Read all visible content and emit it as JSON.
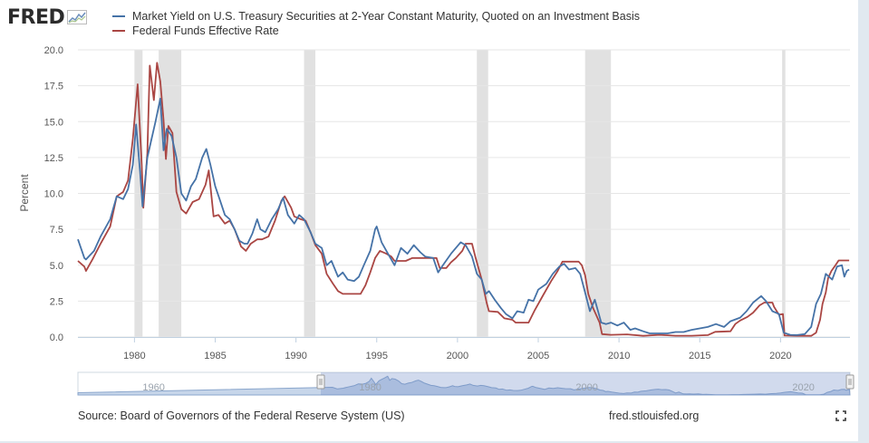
{
  "header": {
    "logo_text": "FRED",
    "legend": [
      {
        "label": "Market Yield on U.S. Treasury Securities at 2-Year Constant Maturity, Quoted on an Investment Basis",
        "color": "#4572a7"
      },
      {
        "label": "Federal Funds Effective Rate",
        "color": "#aa4643"
      }
    ]
  },
  "footer": {
    "source": "Source: Board of Governors of the Federal Reserve System (US)",
    "link": "fred.stlouisfed.org"
  },
  "chart_data": {
    "type": "line",
    "title": "",
    "xlabel": "",
    "ylabel": "Percent",
    "xlim": [
      1976.5,
      2024.3
    ],
    "ylim": [
      0,
      20
    ],
    "yticks": [
      "0.0",
      "2.5",
      "5.0",
      "7.5",
      "10.0",
      "12.5",
      "15.0",
      "17.5",
      "20.0"
    ],
    "xticks": [
      "1980",
      "1985",
      "1990",
      "1995",
      "2000",
      "2005",
      "2010",
      "2015",
      "2020"
    ],
    "grid": "horizontal",
    "legend_position": "top",
    "recessions": [
      [
        1980.0,
        1980.5
      ],
      [
        1981.5,
        1982.9
      ],
      [
        1990.5,
        1991.2
      ],
      [
        2001.2,
        2001.9
      ],
      [
        2007.9,
        2009.5
      ],
      [
        2020.1,
        2020.3
      ]
    ],
    "series": [
      {
        "name": "Market Yield on U.S. Treasury Securities at 2-Year Constant Maturity, Quoted on an Investment Basis",
        "color": "#4572a7",
        "points": [
          [
            1976.5,
            6.8
          ],
          [
            1976.9,
            5.5
          ],
          [
            1977.0,
            5.4
          ],
          [
            1977.5,
            6.0
          ],
          [
            1977.9,
            7.0
          ],
          [
            1978.5,
            8.2
          ],
          [
            1978.9,
            9.8
          ],
          [
            1979.3,
            9.6
          ],
          [
            1979.6,
            10.3
          ],
          [
            1979.9,
            12.0
          ],
          [
            1980.1,
            14.8
          ],
          [
            1980.35,
            11.5
          ],
          [
            1980.5,
            9.1
          ],
          [
            1980.8,
            12.5
          ],
          [
            1981.0,
            13.5
          ],
          [
            1981.3,
            15.0
          ],
          [
            1981.6,
            16.6
          ],
          [
            1981.8,
            13.0
          ],
          [
            1982.0,
            14.5
          ],
          [
            1982.3,
            14.0
          ],
          [
            1982.6,
            12.5
          ],
          [
            1982.9,
            10.0
          ],
          [
            1983.2,
            9.5
          ],
          [
            1983.5,
            10.5
          ],
          [
            1983.8,
            11.0
          ],
          [
            1984.2,
            12.5
          ],
          [
            1984.45,
            13.1
          ],
          [
            1984.7,
            12.0
          ],
          [
            1985.0,
            10.5
          ],
          [
            1985.3,
            9.5
          ],
          [
            1985.6,
            8.5
          ],
          [
            1985.9,
            8.2
          ],
          [
            1986.2,
            7.5
          ],
          [
            1986.5,
            6.7
          ],
          [
            1986.8,
            6.5
          ],
          [
            1987.0,
            6.5
          ],
          [
            1987.3,
            7.2
          ],
          [
            1987.6,
            8.2
          ],
          [
            1987.8,
            7.5
          ],
          [
            1988.1,
            7.3
          ],
          [
            1988.5,
            8.2
          ],
          [
            1988.9,
            8.9
          ],
          [
            1989.2,
            9.7
          ],
          [
            1989.5,
            8.5
          ],
          [
            1989.9,
            7.9
          ],
          [
            1990.2,
            8.5
          ],
          [
            1990.5,
            8.2
          ],
          [
            1990.9,
            7.3
          ],
          [
            1991.2,
            6.5
          ],
          [
            1991.6,
            6.2
          ],
          [
            1991.9,
            5.0
          ],
          [
            1992.2,
            5.3
          ],
          [
            1992.6,
            4.2
          ],
          [
            1992.9,
            4.5
          ],
          [
            1993.2,
            4.0
          ],
          [
            1993.6,
            3.9
          ],
          [
            1993.9,
            4.2
          ],
          [
            1994.2,
            5.0
          ],
          [
            1994.6,
            6.0
          ],
          [
            1994.9,
            7.5
          ],
          [
            1995.0,
            7.7
          ],
          [
            1995.3,
            6.6
          ],
          [
            1995.6,
            6.0
          ],
          [
            1995.9,
            5.4
          ],
          [
            1996.1,
            5.0
          ],
          [
            1996.5,
            6.2
          ],
          [
            1996.9,
            5.8
          ],
          [
            1997.3,
            6.4
          ],
          [
            1997.7,
            5.9
          ],
          [
            1998.0,
            5.6
          ],
          [
            1998.5,
            5.5
          ],
          [
            1998.8,
            4.5
          ],
          [
            1999.1,
            5.0
          ],
          [
            1999.6,
            5.8
          ],
          [
            1999.9,
            6.2
          ],
          [
            2000.2,
            6.6
          ],
          [
            2000.5,
            6.4
          ],
          [
            2000.9,
            5.6
          ],
          [
            2001.2,
            4.4
          ],
          [
            2001.5,
            4.0
          ],
          [
            2001.75,
            3.0
          ],
          [
            2001.95,
            3.2
          ],
          [
            2002.3,
            2.6
          ],
          [
            2002.7,
            2.0
          ],
          [
            2003.0,
            1.6
          ],
          [
            2003.4,
            1.3
          ],
          [
            2003.7,
            1.8
          ],
          [
            2004.1,
            1.7
          ],
          [
            2004.4,
            2.6
          ],
          [
            2004.7,
            2.5
          ],
          [
            2005.0,
            3.3
          ],
          [
            2005.5,
            3.7
          ],
          [
            2005.9,
            4.4
          ],
          [
            2006.3,
            4.9
          ],
          [
            2006.6,
            5.1
          ],
          [
            2006.9,
            4.7
          ],
          [
            2007.3,
            4.8
          ],
          [
            2007.6,
            4.4
          ],
          [
            2007.9,
            3.1
          ],
          [
            2008.2,
            1.8
          ],
          [
            2008.5,
            2.6
          ],
          [
            2008.9,
            1.0
          ],
          [
            2009.2,
            0.9
          ],
          [
            2009.5,
            1.0
          ],
          [
            2009.9,
            0.8
          ],
          [
            2010.3,
            1.0
          ],
          [
            2010.7,
            0.5
          ],
          [
            2011.0,
            0.6
          ],
          [
            2011.5,
            0.4
          ],
          [
            2011.9,
            0.25
          ],
          [
            2012.5,
            0.25
          ],
          [
            2013.0,
            0.25
          ],
          [
            2013.5,
            0.35
          ],
          [
            2014.0,
            0.35
          ],
          [
            2014.5,
            0.5
          ],
          [
            2015.0,
            0.6
          ],
          [
            2015.5,
            0.7
          ],
          [
            2016.0,
            0.9
          ],
          [
            2016.5,
            0.7
          ],
          [
            2016.9,
            1.1
          ],
          [
            2017.5,
            1.35
          ],
          [
            2017.9,
            1.8
          ],
          [
            2018.3,
            2.4
          ],
          [
            2018.8,
            2.85
          ],
          [
            2019.1,
            2.5
          ],
          [
            2019.5,
            1.8
          ],
          [
            2019.9,
            1.6
          ],
          [
            2020.2,
            0.3
          ],
          [
            2020.6,
            0.15
          ],
          [
            2021.0,
            0.13
          ],
          [
            2021.5,
            0.2
          ],
          [
            2021.9,
            0.7
          ],
          [
            2022.2,
            2.3
          ],
          [
            2022.5,
            3.0
          ],
          [
            2022.8,
            4.4
          ],
          [
            2023.0,
            4.2
          ],
          [
            2023.2,
            4.0
          ],
          [
            2023.5,
            4.9
          ],
          [
            2023.8,
            5.0
          ],
          [
            2023.95,
            4.2
          ],
          [
            2024.1,
            4.6
          ],
          [
            2024.25,
            4.7
          ]
        ]
      },
      {
        "name": "Federal Funds Effective Rate",
        "color": "#aa4643",
        "points": [
          [
            1976.5,
            5.3
          ],
          [
            1976.9,
            4.9
          ],
          [
            1977.0,
            4.6
          ],
          [
            1977.4,
            5.4
          ],
          [
            1977.9,
            6.5
          ],
          [
            1978.5,
            7.7
          ],
          [
            1978.9,
            9.8
          ],
          [
            1979.3,
            10.1
          ],
          [
            1979.6,
            10.9
          ],
          [
            1979.9,
            13.8
          ],
          [
            1980.2,
            17.6
          ],
          [
            1980.45,
            12.0
          ],
          [
            1980.55,
            9.0
          ],
          [
            1980.8,
            12.8
          ],
          [
            1980.95,
            18.9
          ],
          [
            1981.2,
            16.5
          ],
          [
            1981.4,
            19.1
          ],
          [
            1981.6,
            17.8
          ],
          [
            1981.8,
            15.1
          ],
          [
            1981.95,
            12.4
          ],
          [
            1982.1,
            14.7
          ],
          [
            1982.35,
            14.2
          ],
          [
            1982.6,
            10.1
          ],
          [
            1982.9,
            8.9
          ],
          [
            1983.2,
            8.6
          ],
          [
            1983.6,
            9.4
          ],
          [
            1984.0,
            9.6
          ],
          [
            1984.4,
            10.6
          ],
          [
            1984.6,
            11.6
          ],
          [
            1984.9,
            8.4
          ],
          [
            1985.2,
            8.5
          ],
          [
            1985.6,
            7.9
          ],
          [
            1985.9,
            8.1
          ],
          [
            1986.2,
            7.5
          ],
          [
            1986.6,
            6.3
          ],
          [
            1986.9,
            6.0
          ],
          [
            1987.2,
            6.5
          ],
          [
            1987.6,
            6.8
          ],
          [
            1987.9,
            6.8
          ],
          [
            1988.3,
            7.0
          ],
          [
            1988.7,
            8.1
          ],
          [
            1989.1,
            9.5
          ],
          [
            1989.3,
            9.8
          ],
          [
            1989.7,
            9.0
          ],
          [
            1989.9,
            8.4
          ],
          [
            1990.3,
            8.2
          ],
          [
            1990.6,
            8.1
          ],
          [
            1990.9,
            7.3
          ],
          [
            1991.2,
            6.4
          ],
          [
            1991.6,
            5.8
          ],
          [
            1991.9,
            4.4
          ],
          [
            1992.3,
            3.7
          ],
          [
            1992.6,
            3.2
          ],
          [
            1992.9,
            3.0
          ],
          [
            1993.5,
            3.0
          ],
          [
            1994.0,
            3.0
          ],
          [
            1994.3,
            3.6
          ],
          [
            1994.6,
            4.5
          ],
          [
            1994.9,
            5.5
          ],
          [
            1995.2,
            6.0
          ],
          [
            1995.6,
            5.8
          ],
          [
            1995.9,
            5.6
          ],
          [
            1996.1,
            5.3
          ],
          [
            1996.8,
            5.3
          ],
          [
            1997.2,
            5.5
          ],
          [
            1998.0,
            5.5
          ],
          [
            1998.7,
            5.5
          ],
          [
            1998.9,
            4.8
          ],
          [
            1999.3,
            4.8
          ],
          [
            1999.6,
            5.2
          ],
          [
            1999.9,
            5.5
          ],
          [
            2000.3,
            6.0
          ],
          [
            2000.5,
            6.5
          ],
          [
            2000.9,
            6.5
          ],
          [
            2001.1,
            5.6
          ],
          [
            2001.5,
            4.0
          ],
          [
            2001.8,
            2.4
          ],
          [
            2001.95,
            1.8
          ],
          [
            2002.5,
            1.75
          ],
          [
            2002.9,
            1.3
          ],
          [
            2003.4,
            1.2
          ],
          [
            2003.6,
            1.0
          ],
          [
            2004.4,
            1.0
          ],
          [
            2004.8,
            1.9
          ],
          [
            2005.3,
            2.9
          ],
          [
            2005.8,
            3.9
          ],
          [
            2006.2,
            4.6
          ],
          [
            2006.5,
            5.25
          ],
          [
            2007.5,
            5.25
          ],
          [
            2007.7,
            5.0
          ],
          [
            2007.9,
            4.3
          ],
          [
            2008.1,
            3.0
          ],
          [
            2008.4,
            2.0
          ],
          [
            2008.8,
            1.0
          ],
          [
            2008.95,
            0.2
          ],
          [
            2009.5,
            0.15
          ],
          [
            2010.5,
            0.18
          ],
          [
            2011.5,
            0.08
          ],
          [
            2012.5,
            0.15
          ],
          [
            2013.5,
            0.09
          ],
          [
            2014.5,
            0.09
          ],
          [
            2015.5,
            0.13
          ],
          [
            2015.95,
            0.36
          ],
          [
            2016.9,
            0.4
          ],
          [
            2017.2,
            0.9
          ],
          [
            2017.5,
            1.15
          ],
          [
            2017.95,
            1.4
          ],
          [
            2018.3,
            1.7
          ],
          [
            2018.7,
            2.2
          ],
          [
            2018.99,
            2.4
          ],
          [
            2019.5,
            2.4
          ],
          [
            2019.6,
            2.1
          ],
          [
            2019.9,
            1.55
          ],
          [
            2020.15,
            1.6
          ],
          [
            2020.25,
            0.1
          ],
          [
            2021.0,
            0.08
          ],
          [
            2021.9,
            0.08
          ],
          [
            2022.2,
            0.3
          ],
          [
            2022.45,
            1.2
          ],
          [
            2022.6,
            2.3
          ],
          [
            2022.8,
            3.1
          ],
          [
            2022.95,
            4.1
          ],
          [
            2023.15,
            4.6
          ],
          [
            2023.4,
            5.0
          ],
          [
            2023.6,
            5.33
          ],
          [
            2024.25,
            5.33
          ]
        ]
      }
    ]
  },
  "navigator": {
    "labels": [
      "1960",
      "1980",
      "2000",
      "2020"
    ]
  }
}
